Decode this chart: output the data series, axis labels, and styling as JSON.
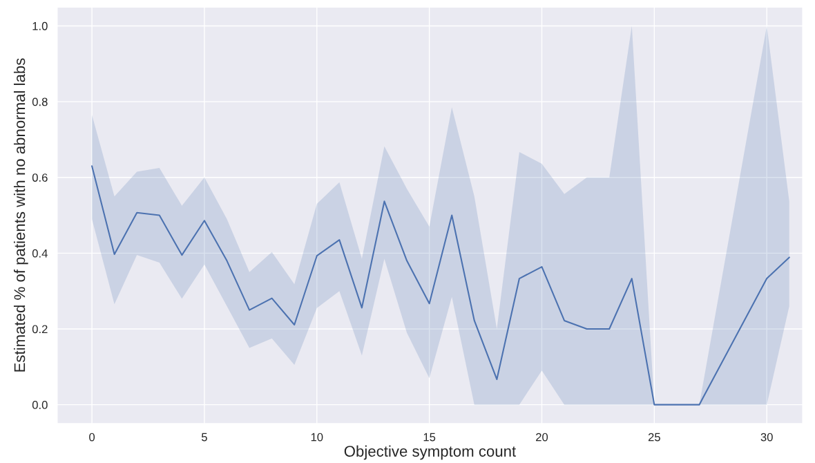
{
  "chart_data": {
    "type": "line",
    "xlabel": "Objective symptom count",
    "ylabel": "Estimated % of patients with no abnormal labs",
    "x": [
      0,
      1,
      2,
      3,
      4,
      5,
      6,
      7,
      8,
      9,
      10,
      11,
      12,
      13,
      14,
      15,
      16,
      17,
      18,
      19,
      20,
      21,
      22,
      23,
      24,
      25,
      26,
      27,
      30,
      31
    ],
    "series": [
      {
        "color": "#4c72b0",
        "values": [
          0.63,
          0.397,
          0.507,
          0.5,
          0.395,
          0.486,
          0.38,
          0.25,
          0.281,
          0.211,
          0.393,
          0.435,
          0.256,
          0.537,
          0.38,
          0.267,
          0.5,
          0.222,
          0.067,
          0.333,
          0.364,
          0.222,
          0.2,
          0.2,
          0.333,
          0,
          0,
          0,
          0.333,
          0.389
        ],
        "upper": [
          0.765,
          0.55,
          0.615,
          0.625,
          0.525,
          0.6,
          0.49,
          0.35,
          0.403,
          0.318,
          0.53,
          0.587,
          0.385,
          0.682,
          0.57,
          0.47,
          0.785,
          0.55,
          0.2,
          0.667,
          0.636,
          0.556,
          0.6,
          0.6,
          1.0,
          0,
          0,
          0,
          1.0,
          0.536
        ],
        "lower": [
          0.49,
          0.265,
          0.395,
          0.375,
          0.28,
          0.37,
          0.26,
          0.15,
          0.175,
          0.105,
          0.255,
          0.3,
          0.13,
          0.385,
          0.19,
          0.07,
          0.285,
          0,
          0,
          0,
          0.09,
          0,
          0,
          0,
          0,
          0,
          0,
          0,
          0,
          0.26
        ]
      }
    ],
    "xlim": [
      -1.55,
      31.6
    ],
    "ylim": [
      -0.05,
      1.05
    ],
    "xticks": [
      0,
      5,
      10,
      15,
      20,
      25,
      30
    ],
    "yticks": [
      {
        "value": 0,
        "label": "0.0"
      },
      {
        "value": 0.2,
        "label": "0.2"
      },
      {
        "value": 0.4,
        "label": "0.4"
      },
      {
        "value": 0.6,
        "label": "0.6"
      },
      {
        "value": 0.8,
        "label": "0.8"
      },
      {
        "value": 1.0,
        "label": "1.0"
      }
    ],
    "grid": true,
    "marker": "none",
    "line_style": "solid"
  }
}
